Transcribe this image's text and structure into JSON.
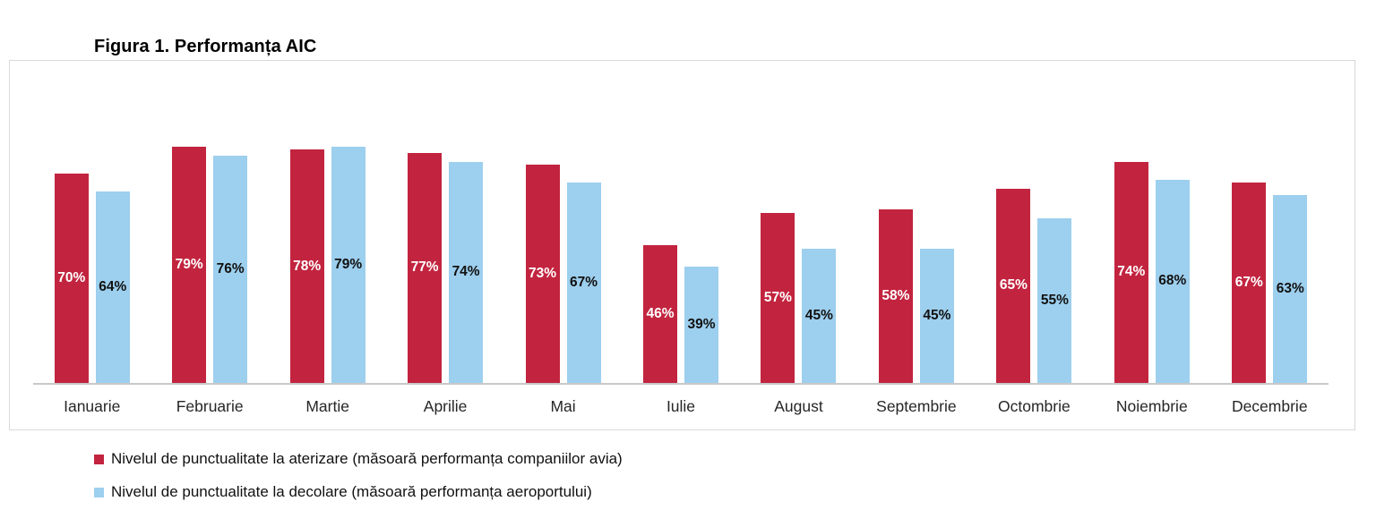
{
  "chart_data": {
    "type": "bar",
    "title": "Figura 1. Performanța AIC",
    "categories": [
      "Ianuarie",
      "Februarie",
      "Martie",
      "Aprilie",
      "Mai",
      "Iulie",
      "August",
      "Septembrie",
      "Octombrie",
      "Noiembrie",
      "Decembrie"
    ],
    "series": [
      {
        "name": "Nivelul de punctualitate la aterizare (măsoară performanța companiilor avia)",
        "color": "#c2243f",
        "label_color": "#ffffff",
        "values": [
          70,
          79,
          78,
          77,
          73,
          46,
          57,
          58,
          65,
          74,
          67
        ]
      },
      {
        "name": "Nivelul de punctualitate la decolare (măsoară performanța aeroportului)",
        "color": "#9dcfee",
        "label_color": "#111111",
        "values": [
          64,
          76,
          79,
          74,
          67,
          39,
          45,
          45,
          55,
          68,
          63
        ]
      }
    ],
    "value_suffix": "%",
    "ylim": [
      0,
      100
    ],
    "grid": false,
    "y_axis_visible": false,
    "legend_position": "bottom-left",
    "data_labels": "inside-center"
  }
}
